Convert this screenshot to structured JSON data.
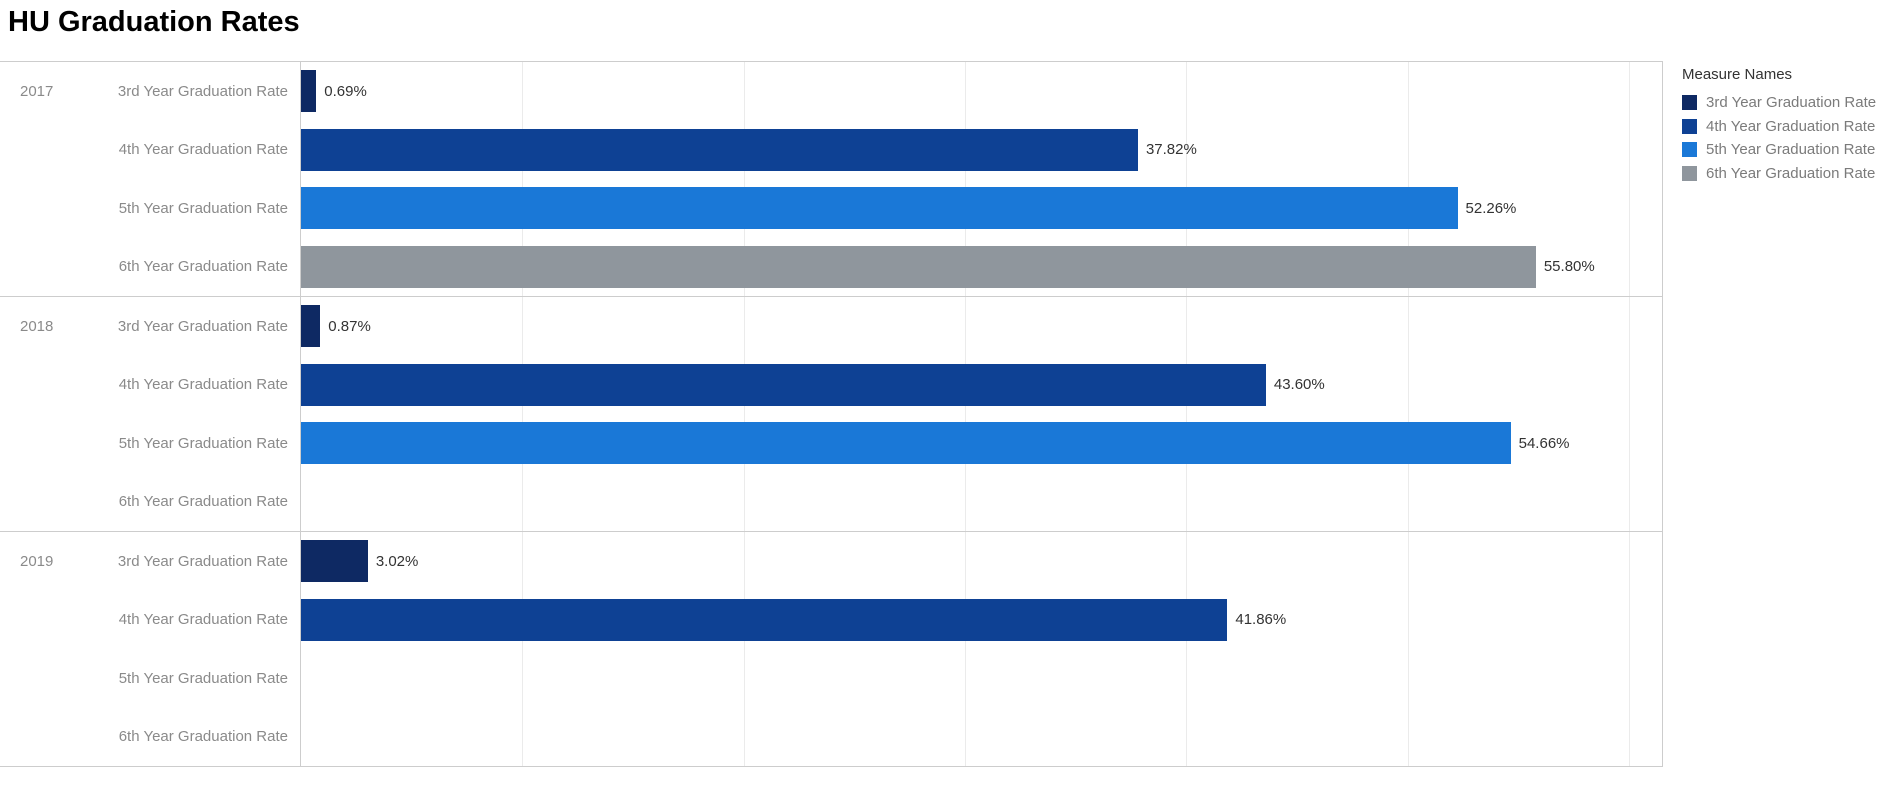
{
  "title": "HU Graduation Rates",
  "legend": {
    "title": "Measure Names",
    "items": [
      {
        "label": "3rd Year Graduation Rate",
        "color": "#0e2963"
      },
      {
        "label": "4th Year Graduation Rate",
        "color": "#0e4194"
      },
      {
        "label": "5th Year Graduation Rate",
        "color": "#1a78d7"
      },
      {
        "label": "6th Year Graduation Rate",
        "color": "#8f969d"
      }
    ]
  },
  "chart_data": {
    "type": "bar",
    "orientation": "horizontal",
    "title": "HU Graduation Rates",
    "xlabel": "",
    "ylabel": "",
    "xlim": [
      0,
      61.5
    ],
    "grid": true,
    "gridline_interval_pct": 10,
    "legend_position": "right",
    "categories": [
      "3rd Year Graduation Rate",
      "4th Year Graduation Rate",
      "5th Year Graduation Rate",
      "6th Year Graduation Rate"
    ],
    "groups": [
      {
        "year": "2017",
        "values": [
          0.69,
          37.82,
          52.26,
          55.8
        ],
        "labels": [
          "0.69%",
          "37.82%",
          "52.26%",
          "55.80%"
        ]
      },
      {
        "year": "2018",
        "values": [
          0.87,
          43.6,
          54.66,
          null
        ],
        "labels": [
          "0.87%",
          "43.60%",
          "54.66%",
          null
        ]
      },
      {
        "year": "2019",
        "values": [
          3.02,
          41.86,
          null,
          null
        ],
        "labels": [
          "3.02%",
          "41.86%",
          null,
          null
        ]
      }
    ]
  }
}
